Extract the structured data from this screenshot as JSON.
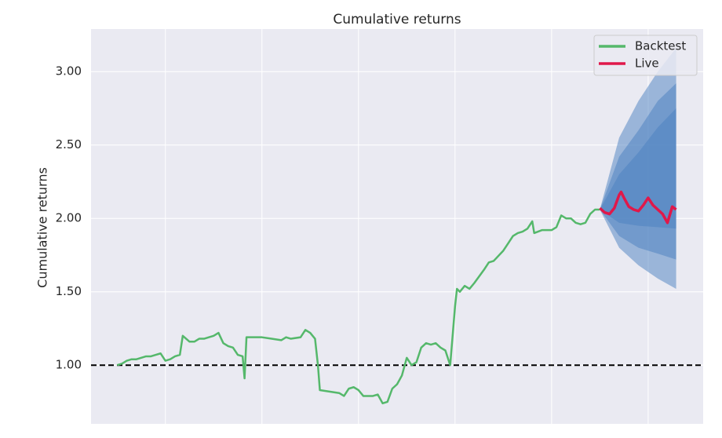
{
  "chart_data": {
    "type": "line",
    "title": "Cumulative returns",
    "y_label": "Cumulative returns",
    "xlim": [
      -0.77,
      5.57
    ],
    "xticks": [
      0,
      1,
      2,
      3,
      4,
      5
    ],
    "ylim": [
      0.6,
      3.29
    ],
    "yticks": [
      {
        "value": 1,
        "label": "1.00"
      },
      {
        "value": 1.5,
        "label": "1.50"
      },
      {
        "value": 2,
        "label": "2.00"
      },
      {
        "value": 2.5,
        "label": "2.50"
      },
      {
        "value": 3,
        "label": "3.00"
      }
    ],
    "grid": true,
    "legend": "upper right",
    "hline": 1,
    "series": [
      {
        "name": "Backtest",
        "color": "#55b86b",
        "x": [
          -0.5,
          -0.45,
          -0.4,
          -0.35,
          -0.3,
          -0.25,
          -0.2,
          -0.15,
          -0.1,
          -0.05,
          0,
          0.05,
          0.1,
          0.15,
          0.18,
          0.25,
          0.3,
          0.35,
          0.4,
          0.45,
          0.5,
          0.55,
          0.6,
          0.65,
          0.7,
          0.75,
          0.8,
          0.82,
          0.84,
          0.9,
          1.0,
          1.1,
          1.2,
          1.25,
          1.3,
          1.4,
          1.45,
          1.5,
          1.55,
          1.58,
          1.6,
          1.7,
          1.8,
          1.85,
          1.9,
          1.95,
          2.0,
          2.05,
          2.1,
          2.15,
          2.2,
          2.25,
          2.3,
          2.35,
          2.4,
          2.45,
          2.5,
          2.55,
          2.6,
          2.65,
          2.7,
          2.75,
          2.8,
          2.85,
          2.9,
          2.95,
          3.0,
          3.02,
          3.05,
          3.1,
          3.15,
          3.2,
          3.3,
          3.35,
          3.4,
          3.5,
          3.55,
          3.6,
          3.65,
          3.7,
          3.75,
          3.8,
          3.82,
          3.9,
          4.0,
          4.05,
          4.1,
          4.15,
          4.2,
          4.25,
          4.3,
          4.35,
          4.4,
          4.45,
          4.5
        ],
        "values": [
          1.0,
          1.01,
          1.03,
          1.04,
          1.04,
          1.05,
          1.06,
          1.06,
          1.07,
          1.08,
          1.03,
          1.04,
          1.06,
          1.07,
          1.2,
          1.16,
          1.16,
          1.18,
          1.18,
          1.19,
          1.2,
          1.22,
          1.15,
          1.13,
          1.12,
          1.07,
          1.06,
          0.91,
          1.19,
          1.19,
          1.19,
          1.18,
          1.17,
          1.19,
          1.18,
          1.19,
          1.24,
          1.22,
          1.18,
          1.0,
          0.83,
          0.82,
          0.81,
          0.79,
          0.84,
          0.85,
          0.83,
          0.79,
          0.79,
          0.79,
          0.8,
          0.74,
          0.75,
          0.84,
          0.87,
          0.93,
          1.05,
          1.0,
          1.02,
          1.12,
          1.15,
          1.14,
          1.15,
          1.12,
          1.1,
          1.0,
          1.4,
          1.52,
          1.5,
          1.54,
          1.52,
          1.56,
          1.65,
          1.7,
          1.71,
          1.78,
          1.83,
          1.88,
          1.9,
          1.91,
          1.93,
          1.98,
          1.9,
          1.92,
          1.92,
          1.94,
          2.02,
          2.0,
          2.0,
          1.97,
          1.96,
          1.97,
          2.03,
          2.06,
          2.06
        ]
      },
      {
        "name": "Live",
        "color": "#e0184a",
        "x": [
          4.5,
          4.55,
          4.6,
          4.65,
          4.7,
          4.72,
          4.75,
          4.8,
          4.85,
          4.9,
          4.95,
          5.0,
          5.05,
          5.1,
          5.15,
          5.2,
          5.25,
          5.29
        ],
        "values": [
          2.07,
          2.04,
          2.03,
          2.07,
          2.16,
          2.18,
          2.14,
          2.08,
          2.06,
          2.05,
          2.09,
          2.14,
          2.09,
          2.06,
          2.03,
          1.97,
          2.08,
          2.06
        ]
      }
    ],
    "cone": {
      "color": "#4a7fbf",
      "x": [
        4.5,
        4.7,
        4.9,
        5.1,
        5.29
      ],
      "bands": [
        {
          "upper": [
            2.06,
            2.55,
            2.8,
            3.0,
            3.16
          ],
          "lower": [
            2.06,
            1.8,
            1.68,
            1.59,
            1.52
          ]
        },
        {
          "upper": [
            2.06,
            2.42,
            2.6,
            2.8,
            2.92
          ],
          "lower": [
            2.06,
            1.88,
            1.8,
            1.76,
            1.72
          ]
        },
        {
          "upper": [
            2.06,
            2.3,
            2.45,
            2.62,
            2.75
          ],
          "lower": [
            2.06,
            1.97,
            1.95,
            1.94,
            1.93
          ]
        }
      ]
    }
  }
}
